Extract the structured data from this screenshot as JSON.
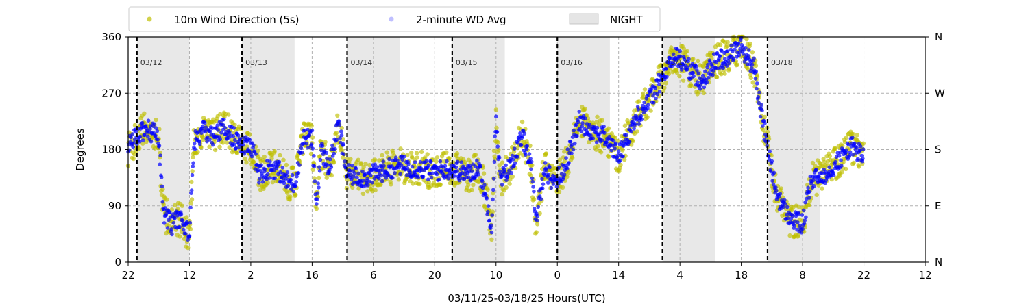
{
  "chart_data": {
    "type": "scatter",
    "xlabel": "03/11/25-03/18/25  Hours(UTC)",
    "ylabel": "Degrees",
    "x_unit": "hours UTC",
    "x_range": [
      "03/11 22:00",
      "03/19 12:00"
    ],
    "x_ticks": [
      {
        "t": "03/11 22:00",
        "label": "22"
      },
      {
        "t": "03/12 12:00",
        "label": "12"
      },
      {
        "t": "03/13 02:00",
        "label": "2"
      },
      {
        "t": "03/13 16:00",
        "label": "16"
      },
      {
        "t": "03/14 06:00",
        "label": "6"
      },
      {
        "t": "03/14 20:00",
        "label": "20"
      },
      {
        "t": "03/15 10:00",
        "label": "10"
      },
      {
        "t": "03/16 00:00",
        "label": "0"
      },
      {
        "t": "03/16 14:00",
        "label": "14"
      },
      {
        "t": "03/17 04:00",
        "label": "4"
      },
      {
        "t": "03/17 18:00",
        "label": "18"
      },
      {
        "t": "03/18 08:00",
        "label": "8"
      },
      {
        "t": "03/18 22:00",
        "label": "22"
      },
      {
        "t": "03/19 12:00",
        "label": "12"
      }
    ],
    "ylim": [
      0,
      360
    ],
    "y_ticks": [
      0,
      90,
      180,
      270,
      360
    ],
    "y2_ticks": [
      {
        "v": 0,
        "label": "N"
      },
      {
        "v": 90,
        "label": "E"
      },
      {
        "v": 180,
        "label": "S"
      },
      {
        "v": 270,
        "label": "W"
      },
      {
        "v": 360,
        "label": "N"
      }
    ],
    "grid": true,
    "legend": {
      "placement": "top-left, above plot",
      "entries": [
        {
          "label": "10m Wind Direction (5s)",
          "color": "#bfbf00",
          "kind": "marker"
        },
        {
          "label": "2-minute WD Avg",
          "color": "#0000ff",
          "kind": "marker"
        },
        {
          "label": "NIGHT",
          "color": "#e5e5e5",
          "kind": "patch"
        }
      ]
    },
    "day_markers": [
      {
        "t": "03/12 00:00",
        "label": "03/12"
      },
      {
        "t": "03/13 00:00",
        "label": "03/13"
      },
      {
        "t": "03/14 00:00",
        "label": "03/14"
      },
      {
        "t": "03/15 00:00",
        "label": "03/15"
      },
      {
        "t": "03/16 00:00",
        "label": "03/16"
      },
      {
        "t": "03/17 00:00",
        "label": "03/17"
      },
      {
        "t": "03/18 00:00",
        "label": "03/18"
      }
    ],
    "night_periods": [
      [
        "03/12 00:00",
        "03/12 12:00"
      ],
      [
        "03/13 00:00",
        "03/13 12:00"
      ],
      [
        "03/14 00:00",
        "03/14 12:00"
      ],
      [
        "03/15 00:00",
        "03/15 12:00"
      ],
      [
        "03/16 00:00",
        "03/16 12:00"
      ],
      [
        "03/17 00:00",
        "03/17 12:00"
      ],
      [
        "03/18 00:00",
        "03/18 12:00"
      ]
    ],
    "series": [
      {
        "name": "10m Wind Direction (5s)",
        "color": "#bfbf00",
        "spread": 28,
        "points": [
          [
            "03/11 22:00",
            180
          ],
          [
            "03/12 02:00",
            215
          ],
          [
            "03/12 05:00",
            200
          ],
          [
            "03/12 06:00",
            80
          ],
          [
            "03/12 08:00",
            60
          ],
          [
            "03/12 10:00",
            70
          ],
          [
            "03/12 12:00",
            40
          ],
          [
            "03/12 13:00",
            190
          ],
          [
            "03/12 15:00",
            210
          ],
          [
            "03/12 17:00",
            200
          ],
          [
            "03/12 20:00",
            215
          ],
          [
            "03/13 00:00",
            185
          ],
          [
            "03/13 02:00",
            185
          ],
          [
            "03/13 04:00",
            140
          ],
          [
            "03/13 06:00",
            150
          ],
          [
            "03/13 08:00",
            150
          ],
          [
            "03/13 10:00",
            130
          ],
          [
            "03/13 12:00",
            125
          ],
          [
            "03/13 14:00",
            200
          ],
          [
            "03/13 16:00",
            195
          ],
          [
            "03/13 17:00",
            90
          ],
          [
            "03/13 18:00",
            180
          ],
          [
            "03/13 20:00",
            150
          ],
          [
            "03/13 22:00",
            220
          ],
          [
            "03/14 00:00",
            140
          ],
          [
            "03/14 04:00",
            135
          ],
          [
            "03/14 08:00",
            145
          ],
          [
            "03/14 12:00",
            155
          ],
          [
            "03/14 16:00",
            150
          ],
          [
            "03/14 20:00",
            145
          ],
          [
            "03/15 00:00",
            150
          ],
          [
            "03/15 04:00",
            140
          ],
          [
            "03/15 06:00",
            155
          ],
          [
            "03/15 09:00",
            60
          ],
          [
            "03/15 10:00",
            230
          ],
          [
            "03/15 11:00",
            130
          ],
          [
            "03/15 13:00",
            150
          ],
          [
            "03/15 16:00",
            200
          ],
          [
            "03/15 18:00",
            160
          ],
          [
            "03/15 19:00",
            60
          ],
          [
            "03/15 21:00",
            150
          ],
          [
            "03/15 23:00",
            130
          ],
          [
            "03/16 01:00",
            140
          ],
          [
            "03/16 03:00",
            180
          ],
          [
            "03/16 05:00",
            225
          ],
          [
            "03/16 08:00",
            210
          ],
          [
            "03/16 11:00",
            200
          ],
          [
            "03/16 14:00",
            170
          ],
          [
            "03/16 18:00",
            230
          ],
          [
            "03/16 22:00",
            270
          ],
          [
            "03/17 00:00",
            295
          ],
          [
            "03/17 03:00",
            330
          ],
          [
            "03/17 06:00",
            310
          ],
          [
            "03/17 09:00",
            290
          ],
          [
            "03/17 12:00",
            320
          ],
          [
            "03/17 15:00",
            330
          ],
          [
            "03/17 18:00",
            345
          ],
          [
            "03/17 21:00",
            310
          ],
          [
            "03/17 23:00",
            220
          ],
          [
            "03/18 02:00",
            110
          ],
          [
            "03/18 05:00",
            70
          ],
          [
            "03/18 08:00",
            60
          ],
          [
            "03/18 10:00",
            130
          ],
          [
            "03/18 13:00",
            140
          ],
          [
            "03/18 16:00",
            160
          ],
          [
            "03/18 19:00",
            185
          ],
          [
            "03/18 22:00",
            170
          ]
        ]
      },
      {
        "name": "2-minute WD Avg",
        "color": "#0000ff",
        "spread": 16,
        "points": [
          [
            "03/11 22:00",
            185
          ],
          [
            "03/12 02:00",
            215
          ],
          [
            "03/12 05:00",
            200
          ],
          [
            "03/12 06:00",
            80
          ],
          [
            "03/12 08:00",
            60
          ],
          [
            "03/12 10:00",
            70
          ],
          [
            "03/12 12:00",
            45
          ],
          [
            "03/12 13:00",
            190
          ],
          [
            "03/12 15:00",
            210
          ],
          [
            "03/12 17:00",
            200
          ],
          [
            "03/12 20:00",
            215
          ],
          [
            "03/13 00:00",
            185
          ],
          [
            "03/13 02:00",
            185
          ],
          [
            "03/13 04:00",
            140
          ],
          [
            "03/13 06:00",
            150
          ],
          [
            "03/13 08:00",
            150
          ],
          [
            "03/13 10:00",
            130
          ],
          [
            "03/13 12:00",
            125
          ],
          [
            "03/13 14:00",
            200
          ],
          [
            "03/13 16:00",
            195
          ],
          [
            "03/13 17:00",
            90
          ],
          [
            "03/13 18:00",
            180
          ],
          [
            "03/13 20:00",
            150
          ],
          [
            "03/13 22:00",
            220
          ],
          [
            "03/14 00:00",
            140
          ],
          [
            "03/14 04:00",
            135
          ],
          [
            "03/14 08:00",
            145
          ],
          [
            "03/14 12:00",
            155
          ],
          [
            "03/14 16:00",
            150
          ],
          [
            "03/14 20:00",
            145
          ],
          [
            "03/15 00:00",
            150
          ],
          [
            "03/15 04:00",
            140
          ],
          [
            "03/15 06:00",
            155
          ],
          [
            "03/15 09:00",
            60
          ],
          [
            "03/15 10:00",
            230
          ],
          [
            "03/15 11:00",
            130
          ],
          [
            "03/15 13:00",
            150
          ],
          [
            "03/15 16:00",
            200
          ],
          [
            "03/15 18:00",
            160
          ],
          [
            "03/15 19:00",
            60
          ],
          [
            "03/15 21:00",
            150
          ],
          [
            "03/15 23:00",
            130
          ],
          [
            "03/16 01:00",
            140
          ],
          [
            "03/16 03:00",
            180
          ],
          [
            "03/16 05:00",
            225
          ],
          [
            "03/16 08:00",
            210
          ],
          [
            "03/16 11:00",
            200
          ],
          [
            "03/16 14:00",
            170
          ],
          [
            "03/16 18:00",
            230
          ],
          [
            "03/16 22:00",
            270
          ],
          [
            "03/17 00:00",
            295
          ],
          [
            "03/17 03:00",
            330
          ],
          [
            "03/17 06:00",
            310
          ],
          [
            "03/17 09:00",
            290
          ],
          [
            "03/17 12:00",
            320
          ],
          [
            "03/17 15:00",
            330
          ],
          [
            "03/17 18:00",
            345
          ],
          [
            "03/17 21:00",
            310
          ],
          [
            "03/17 23:00",
            220
          ],
          [
            "03/18 02:00",
            110
          ],
          [
            "03/18 05:00",
            70
          ],
          [
            "03/18 08:00",
            60
          ],
          [
            "03/18 10:00",
            130
          ],
          [
            "03/18 13:00",
            140
          ],
          [
            "03/18 16:00",
            160
          ],
          [
            "03/18 19:00",
            185
          ],
          [
            "03/18 22:00",
            170
          ]
        ]
      }
    ]
  }
}
